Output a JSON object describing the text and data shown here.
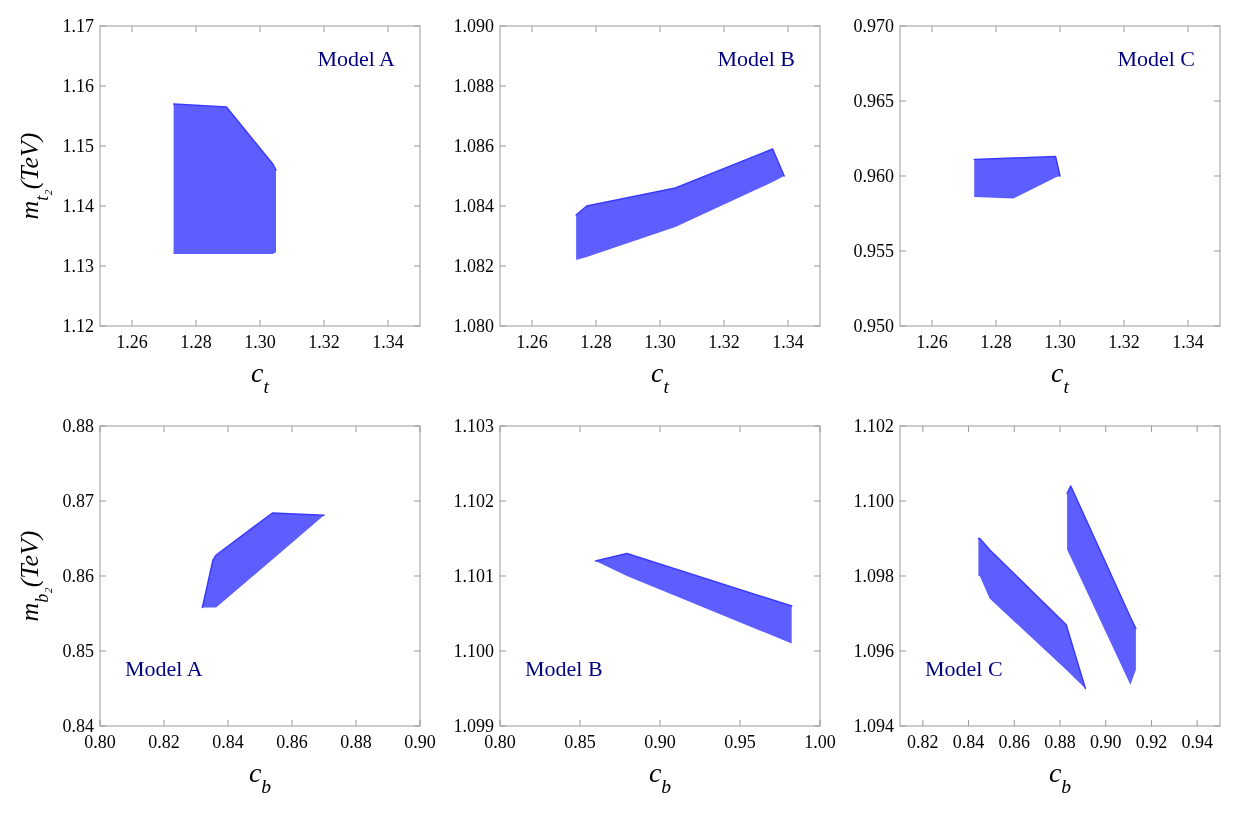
{
  "chart_data": [
    {
      "type": "line",
      "xlabel": "c$_{t}$",
      "ylabel": "m$_{t₂}$(TeV)",
      "annotations": [
        "Model A"
      ],
      "xlim": [
        1.25,
        1.35
      ],
      "ylim": [
        1.12,
        1.17
      ],
      "xticks": [
        1.26,
        1.28,
        {
          "value": 1.3,
          "label": "1.30"
        },
        1.32,
        1.34
      ],
      "yticks": [
        1.12,
        1.13,
        1.14,
        1.15,
        1.16,
        1.17
      ],
      "grid": false,
      "series": [
        {
          "color": "#3a3aff",
          "x": [
            1.273,
            1.2895,
            1.304,
            1.305
          ],
          "values": [
            1.157,
            1.1565,
            1.147,
            1.146
          ],
          "upper": [
            1.157,
            1.1565,
            1.147,
            1.146
          ],
          "lower": [
            1.132,
            1.132,
            1.132,
            1.1323
          ]
        }
      ]
    },
    {
      "type": "line",
      "xlabel": "c$_{t}$",
      "annotations": [
        "Model B"
      ],
      "xlim": [
        1.25,
        1.35
      ],
      "ylim": [
        1.08,
        1.09
      ],
      "xticks": [
        1.26,
        1.28,
        {
          "value": 1.3,
          "label": "1.30"
        },
        1.32,
        1.34
      ],
      "yticks": [
        {
          "value": 1.08,
          "label": "1.080"
        },
        1.082,
        1.084,
        1.086,
        1.088,
        {
          "value": 1.09,
          "label": "1.090"
        }
      ],
      "grid": false,
      "series": [
        {
          "color": "#3a3aff",
          "x": [
            1.2738,
            1.2771,
            1.3048,
            1.3352,
            1.3388
          ],
          "values": [
            1.0837,
            1.084,
            1.0846,
            1.0859,
            1.085
          ],
          "upper": [
            1.0837,
            1.084,
            1.0846,
            1.0859,
            1.085
          ],
          "lower": [
            1.0822,
            1.0823,
            1.0833,
            1.0848,
            1.085
          ]
        }
      ]
    },
    {
      "type": "line",
      "xlabel": "c$_{t}$",
      "annotations": [
        "Model C"
      ],
      "xlim": [
        1.25,
        1.35
      ],
      "ylim": [
        0.95,
        0.97
      ],
      "xticks": [
        1.26,
        1.28,
        {
          "value": 1.3,
          "label": "1.30"
        },
        1.32,
        1.34
      ],
      "yticks": [
        {
          "value": 0.95,
          "label": "0.950"
        },
        0.955,
        {
          "value": 0.96,
          "label": "0.960"
        },
        0.965,
        {
          "value": 0.97,
          "label": "0.970"
        }
      ],
      "grid": false,
      "series": [
        {
          "color": "#3a3aff",
          "x": [
            1.2732,
            1.2854,
            1.2986,
            1.3
          ],
          "values": [
            0.9611,
            0.9612,
            0.9613,
            0.96
          ],
          "upper": [
            0.9611,
            0.9612,
            0.9613,
            0.96
          ],
          "lower": [
            0.9586,
            0.9585,
            0.9599,
            0.96
          ]
        }
      ]
    },
    {
      "type": "line",
      "xlabel": "c$_{b}$",
      "ylabel": "m$_{b₂}$(TeV)",
      "annotations": [
        "Model A"
      ],
      "xlim": [
        0.8,
        0.9
      ],
      "ylim": [
        0.84,
        0.88
      ],
      "xticks": [
        {
          "value": 0.8,
          "label": "0.80"
        },
        0.82,
        0.84,
        0.86,
        0.88,
        {
          "value": 0.9,
          "label": "0.90"
        }
      ],
      "yticks": [
        0.84,
        0.85,
        0.86,
        0.87,
        0.88
      ],
      "grid": false,
      "series": [
        {
          "color": "#3a3aff",
          "x": [
            0.832,
            0.8353,
            0.8363,
            0.8539,
            0.87
          ],
          "values": [
            0.8558,
            0.8621,
            0.8628,
            0.8684,
            0.8681
          ],
          "upper": [
            0.8558,
            0.8621,
            0.8628,
            0.8684,
            0.8681
          ],
          "lower": [
            0.8558,
            0.8558,
            0.8558,
            0.8622,
            0.8681
          ]
        }
      ]
    },
    {
      "type": "line",
      "xlabel": "c$_{b}$",
      "annotations": [
        "Model B"
      ],
      "xlim": [
        0.8,
        1.0
      ],
      "ylim": [
        1.099,
        1.103
      ],
      "xticks": [
        {
          "value": 0.8,
          "label": "0.80"
        },
        0.85,
        {
          "value": 0.9,
          "label": "0.90"
        },
        0.95,
        {
          "value": 1.0,
          "label": "1.00"
        }
      ],
      "yticks": [
        1.099,
        {
          "value": 1.1,
          "label": "1.100"
        },
        1.101,
        1.102,
        1.103
      ],
      "grid": false,
      "series": [
        {
          "color": "#3a3aff",
          "x": [
            0.8597,
            0.8793,
            0.9823
          ],
          "values": [
            1.1012,
            1.1013,
            1.1006
          ],
          "upper": [
            1.1012,
            1.1013,
            1.1006
          ],
          "lower": [
            1.1012,
            1.101,
            1.1001
          ]
        }
      ]
    },
    {
      "type": "line",
      "xlabel": "c$_{b}$",
      "annotations": [
        "Model C"
      ],
      "xlim": [
        0.81,
        0.95
      ],
      "ylim": [
        1.094,
        1.102
      ],
      "xticks": [
        0.82,
        0.84,
        0.86,
        0.88,
        {
          "value": 0.9,
          "label": "0.90"
        },
        0.92,
        0.94
      ],
      "yticks": [
        1.094,
        1.096,
        1.098,
        {
          "value": 1.1,
          "label": "1.100"
        },
        1.102
      ],
      "grid": false,
      "series": [
        {
          "color": "#3a3aff",
          "x": [
            0.8443,
            0.8449,
            0.8492,
            0.8827,
            0.8911
          ],
          "values": [
            1.099,
            1.099,
            1.0987,
            1.0967,
            1.095
          ],
          "upper": [
            1.099,
            1.099,
            1.0987,
            1.0967,
            1.095
          ],
          "lower": [
            1.098,
            1.098,
            1.0974,
            1.0955,
            1.095
          ]
        },
        {
          "color": "#3a3aff",
          "x": [
            0.8831,
            0.8847,
            0.9108,
            0.9132
          ],
          "values": [
            1.1002,
            1.1004,
            1.0969,
            1.0966
          ],
          "upper": [
            1.1002,
            1.1004,
            1.0969,
            1.0966
          ],
          "lower": [
            1.0987,
            1.0985,
            1.0951,
            1.0955
          ]
        }
      ]
    }
  ]
}
